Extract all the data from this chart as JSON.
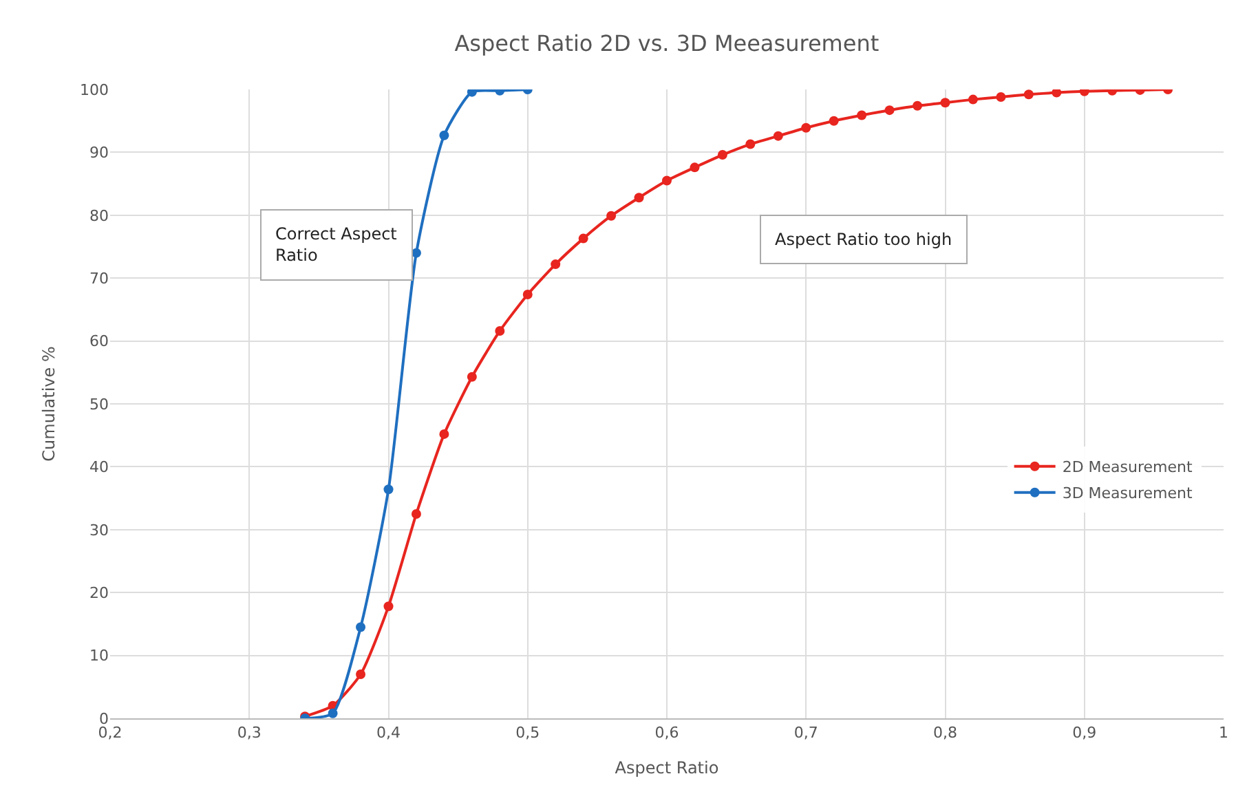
{
  "chart_data": {
    "type": "line",
    "title": "Aspect Ratio 2D vs. 3D Meeasurement",
    "xlabel": "Aspect Ratio",
    "ylabel": "Cumulative %",
    "series": [
      {
        "name": "2D Measurement",
        "color": "#e8251f",
        "x": [
          0.34,
          0.36,
          0.38,
          0.4,
          0.42,
          0.44,
          0.46,
          0.48,
          0.5,
          0.52,
          0.54,
          0.56,
          0.58,
          0.6,
          0.62,
          0.64,
          0.66,
          0.68,
          0.7,
          0.72,
          0.74,
          0.76,
          0.78,
          0.8,
          0.82,
          0.84,
          0.86,
          0.88,
          0.9,
          0.92,
          0.94,
          0.96
        ],
        "values": [
          0.3,
          2,
          7,
          17.8,
          32.5,
          45.2,
          54.3,
          61.6,
          67.4,
          72.2,
          76.3,
          79.9,
          82.8,
          85.5,
          87.6,
          89.6,
          91.3,
          92.6,
          93.9,
          95,
          95.9,
          96.7,
          97.4,
          97.9,
          98.4,
          98.8,
          99.2,
          99.5,
          99.7,
          99.8,
          99.9,
          100
        ]
      },
      {
        "name": "3D Measurement",
        "color": "#1f6fc0",
        "x": [
          0.34,
          0.36,
          0.38,
          0.4,
          0.42,
          0.44,
          0.46,
          0.48,
          0.5
        ],
        "values": [
          0,
          0.8,
          14.5,
          36.4,
          74,
          92.7,
          99.6,
          99.8,
          100
        ]
      }
    ],
    "xlim": [
      0.2,
      1
    ],
    "xticks": [
      {
        "value": 0.2,
        "label": "0,2"
      },
      {
        "value": 0.3,
        "label": "0,3"
      },
      {
        "value": 0.4,
        "label": "0,4"
      },
      {
        "value": 0.5,
        "label": "0,5"
      },
      {
        "value": 0.6,
        "label": "0,6"
      },
      {
        "value": 0.7,
        "label": "0,7"
      },
      {
        "value": 0.8,
        "label": "0,8"
      },
      {
        "value": 0.9,
        "label": "0,9"
      },
      1
    ],
    "ylim": [
      0,
      100
    ],
    "yticks": [
      0,
      10,
      20,
      30,
      40,
      50,
      60,
      70,
      80,
      90,
      100
    ],
    "annotations": [
      "Correct Aspect\nRatio",
      "Aspect Ratio too high"
    ],
    "grid": true,
    "legend": "right",
    "marker": "circle",
    "line_style": "solid"
  }
}
